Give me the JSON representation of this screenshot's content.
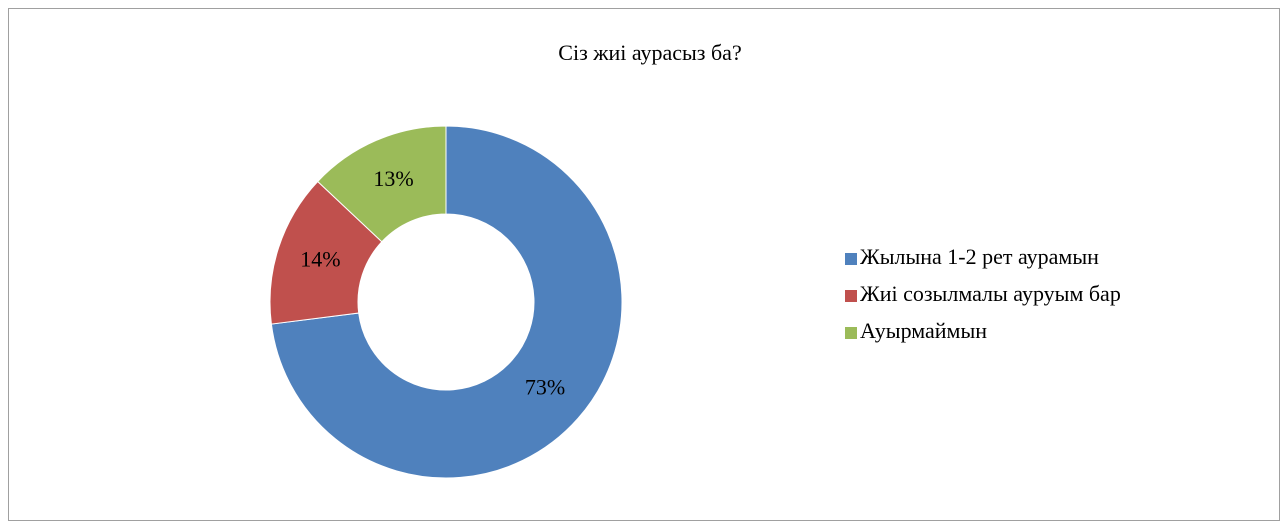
{
  "chart_data": {
    "type": "donut",
    "title": "Сіз жиі аурасыз ба?",
    "categories": [
      "Жылына 1-2 рет аурамын",
      "Жиі созылмалы ауруым бар",
      "Ауырмаймын"
    ],
    "values": [
      73,
      14,
      13
    ],
    "value_labels": [
      "73%",
      "14%",
      "13%"
    ],
    "colors": [
      "#4f81bd",
      "#c0504d",
      "#9bbb59"
    ],
    "legend": "right"
  }
}
